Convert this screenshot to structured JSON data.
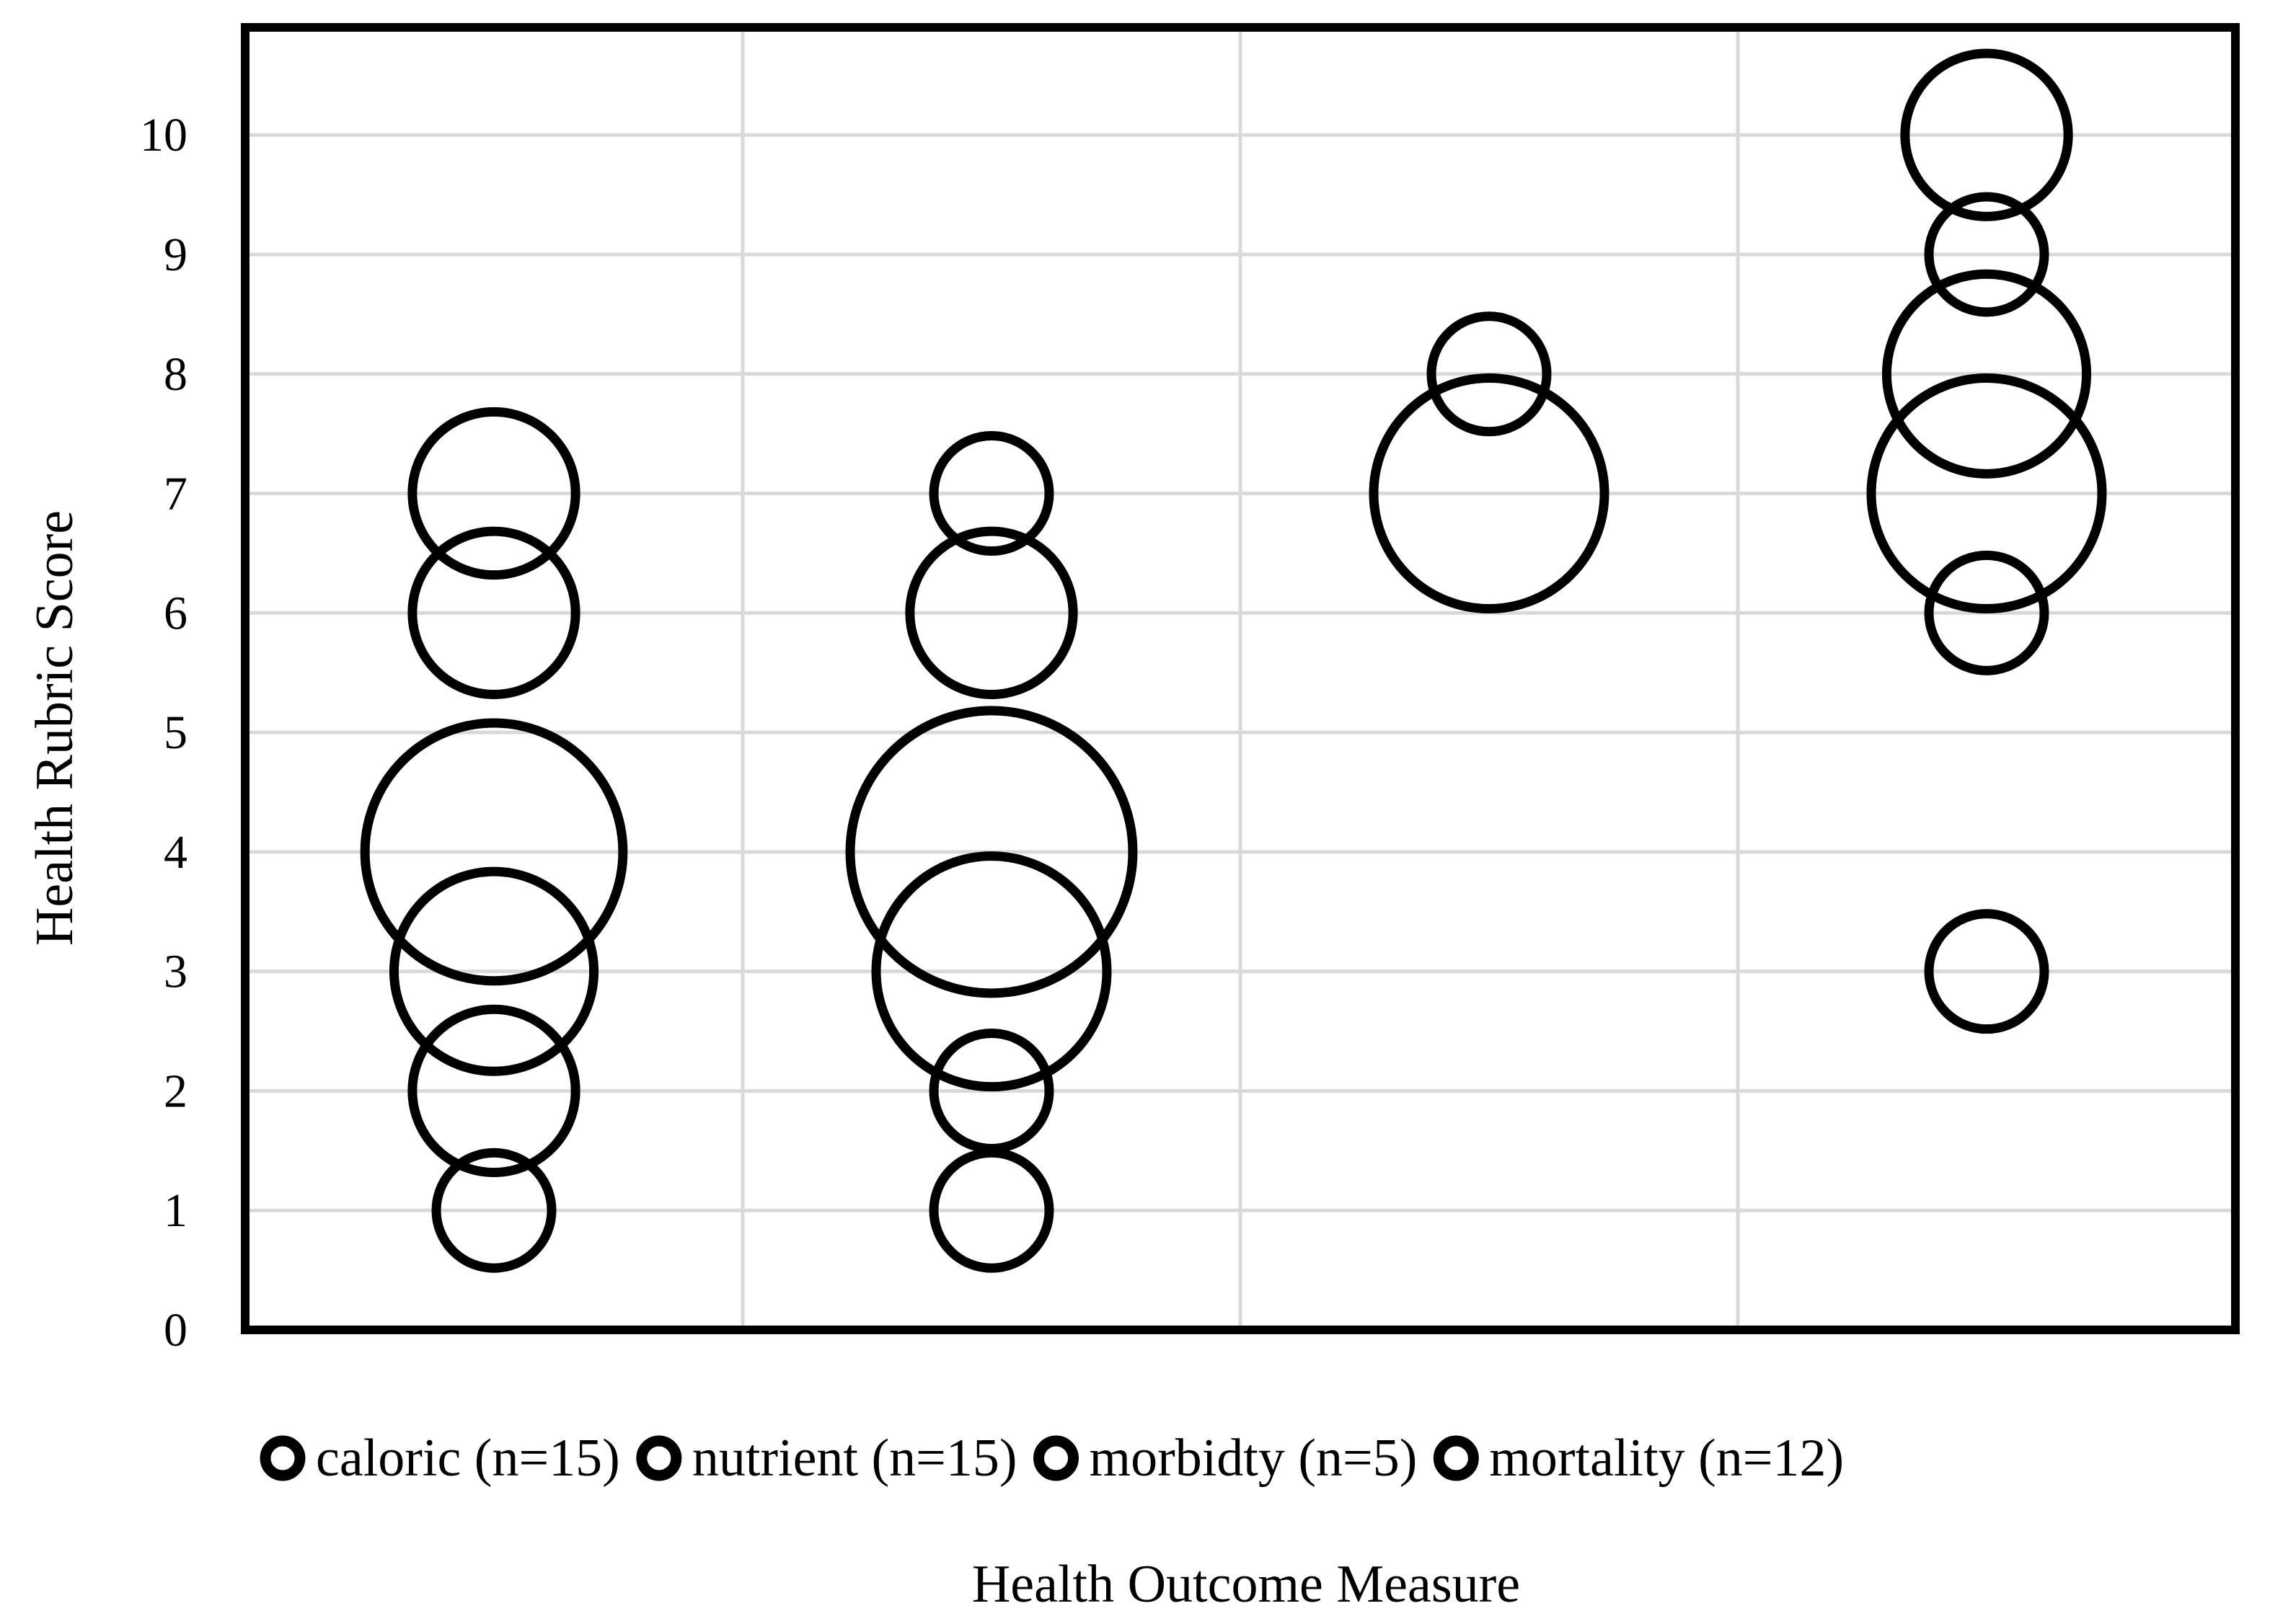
{
  "chart_data": {
    "type": "bubble",
    "title": "",
    "xlabel": "Health Outcome Measure",
    "ylabel": "Health Rubric Score",
    "ylim": [
      0,
      10.9
    ],
    "yticks": [
      0,
      1,
      2,
      3,
      4,
      5,
      6,
      7,
      8,
      9,
      10
    ],
    "xlim": [
      0,
      4
    ],
    "grid": true,
    "legend_position": "bottom",
    "series": [
      {
        "name": "caloric (n=15)",
        "x": 0.5,
        "points": [
          {
            "y": 1,
            "size": 1
          },
          {
            "y": 2,
            "size": 2
          },
          {
            "y": 3,
            "size": 3
          },
          {
            "y": 4,
            "size": 5
          },
          {
            "y": 6,
            "size": 2
          },
          {
            "y": 7,
            "size": 2
          }
        ]
      },
      {
        "name": "nutrient (n=15)",
        "x": 1.5,
        "points": [
          {
            "y": 1,
            "size": 1
          },
          {
            "y": 2,
            "size": 1
          },
          {
            "y": 3,
            "size": 4
          },
          {
            "y": 4,
            "size": 6
          },
          {
            "y": 6,
            "size": 2
          },
          {
            "y": 7,
            "size": 1
          }
        ]
      },
      {
        "name": "morbidty (n=5)",
        "x": 2.5,
        "points": [
          {
            "y": 7,
            "size": 4
          },
          {
            "y": 8,
            "size": 1
          }
        ]
      },
      {
        "name": "mortality (n=12)",
        "x": 3.5,
        "points": [
          {
            "y": 3,
            "size": 1
          },
          {
            "y": 6,
            "size": 1
          },
          {
            "y": 7,
            "size": 4
          },
          {
            "y": 8,
            "size": 3
          },
          {
            "y": 9,
            "size": 1
          },
          {
            "y": 10,
            "size": 2
          }
        ]
      }
    ]
  }
}
